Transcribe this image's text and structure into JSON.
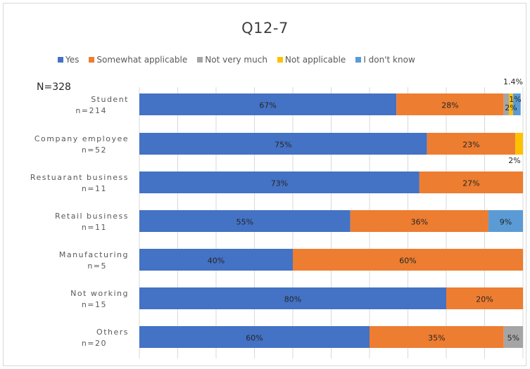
{
  "chart_data": {
    "type": "bar",
    "orientation": "horizontal",
    "stacked": true,
    "title": "Q12-7",
    "sample_label": "N=328",
    "xlim": [
      0,
      100
    ],
    "grid": true,
    "legend_position": "top",
    "categories": [
      {
        "name": "Student",
        "n": "n=214"
      },
      {
        "name": "Company employee",
        "n": "n=52"
      },
      {
        "name": "Restuarant business",
        "n": "n=11"
      },
      {
        "name": "Retail business",
        "n": "n=11"
      },
      {
        "name": "Manufacturing",
        "n": "n=5"
      },
      {
        "name": "Not working",
        "n": "n=15"
      },
      {
        "name": "Others",
        "n": "n=20"
      }
    ],
    "series": [
      {
        "name": "Yes",
        "color": "#4472C4",
        "values": [
          67,
          75,
          73,
          55,
          40,
          80,
          60
        ],
        "labels": [
          "67%",
          "75%",
          "73%",
          "55%",
          "40%",
          "80%",
          "60%"
        ]
      },
      {
        "name": "Somewhat applicable",
        "color": "#ED7D31",
        "values": [
          28,
          23,
          27,
          36,
          60,
          20,
          35
        ],
        "labels": [
          "28%",
          "23%",
          "27%",
          "36%",
          "60%",
          "20%",
          "35%"
        ]
      },
      {
        "name": "Not very much",
        "color": "#A5A5A5",
        "values": [
          1.4,
          0,
          0,
          0,
          0,
          0,
          5
        ],
        "labels": [
          "1.4%",
          "",
          "",
          "",
          "",
          "",
          "5%"
        ]
      },
      {
        "name": "Not applicable",
        "color": "#FFC000",
        "values": [
          1,
          2,
          0,
          0,
          0,
          0,
          0
        ],
        "labels": [
          "1%",
          "2%",
          "",
          "",
          "",
          "",
          ""
        ]
      },
      {
        "name": "I don't know",
        "color": "#5B9BD5",
        "values": [
          2,
          0,
          0,
          9,
          0,
          0,
          0
        ],
        "labels": [
          "2%",
          "",
          "",
          "9%",
          "",
          "",
          ""
        ]
      }
    ]
  }
}
